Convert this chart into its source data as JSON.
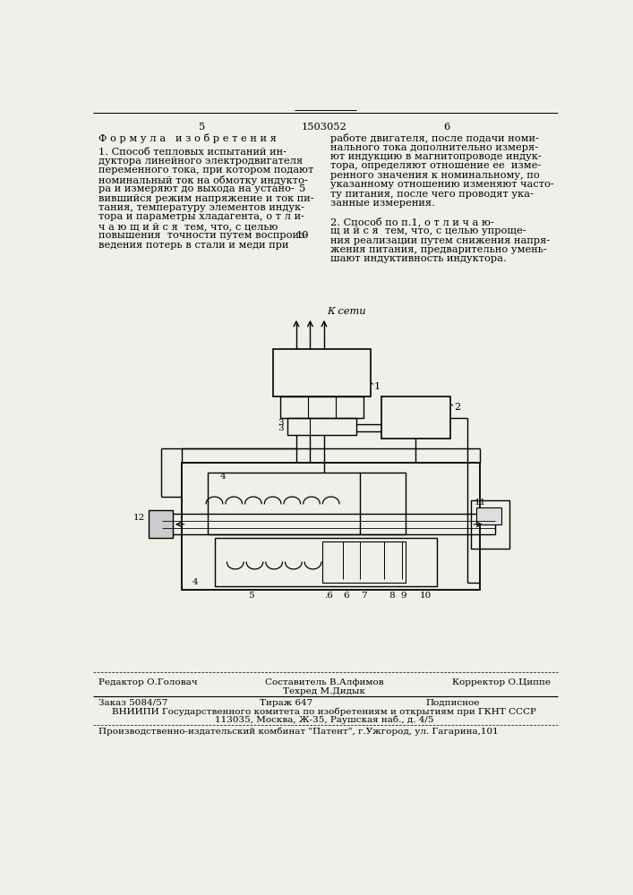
{
  "bg_color": "#f0efe8",
  "page_number_left": "5",
  "page_number_center": "1503052",
  "page_number_right": "6",
  "title_left": "Ф о р м у л а   и з о б р е т е н и я",
  "text_left_l1": "1. Способ тепловых испытаний ин-",
  "text_left_l2": "дуктора линейного электродвигателя",
  "text_left_l3": "переменного тока, при котором подают",
  "text_left_l4": "номинальный ток на обмотку индукто-",
  "text_left_l5": "ра и измеряют до выхода на устано-",
  "text_left_l6": "вившийся режим напряжение и ток пи-",
  "text_left_l7": "тания, температуру элементов индук-",
  "text_left_l8": "тора и параметры хладагента, о т л и-",
  "text_left_l9": "ч а ю щ и й с я  тем, что, с целью",
  "text_left_l10": "повышения  точности путем воспроиз-",
  "text_left_l11": "ведения потерь в стали и меди при",
  "text_right_l1": "работе двигателя, после подачи номи-",
  "text_right_l2": "нального тока дополнительно измеря-",
  "text_right_l3": "ют индукцию в магнитопроводе индук-",
  "text_right_l4": "тора, определяют отношение ее  изме-",
  "text_right_l5": "ренного значения к номинальному, по",
  "text_right_l6": "указанному отношению изменяют часто-",
  "text_right_l7": "ту питания, после чего проводят ука-",
  "text_right_l8": "занные измерения.",
  "text_right2_l1": "2. Способ по п.1, о т л и ч а ю-",
  "text_right2_l2": "щ и й с я  тем, что, с целью упроще-",
  "text_right2_l3": "ния реализации путем снижения напря-",
  "text_right2_l4": "жения питания, предварительно умень-",
  "text_right2_l5": "шают индуктивность индуктора.",
  "footer_editor": "Редактор О.Головач",
  "footer_composer": "Составитель В.Алфимов",
  "footer_corrector": "Корректор О.Циппе",
  "footer_techred": "Техред М.Дидык",
  "footer_order": "Заказ 5084/57",
  "footer_tirazh": "Тираж 647",
  "footer_podpisnoe": "Подписное",
  "footer_vniipи": "ВНИИПИ Государственного комитета по изобретениям и открытиям при ГКНТ СССР",
  "footer_address": "113035, Москва, Ж-35, Раушская наб., д. 4/5",
  "footer_patent": "Производственно-издательский комбинат \"Патент\", г.Ужгород, ул. Гагарина,101",
  "k_seti": "К сети"
}
